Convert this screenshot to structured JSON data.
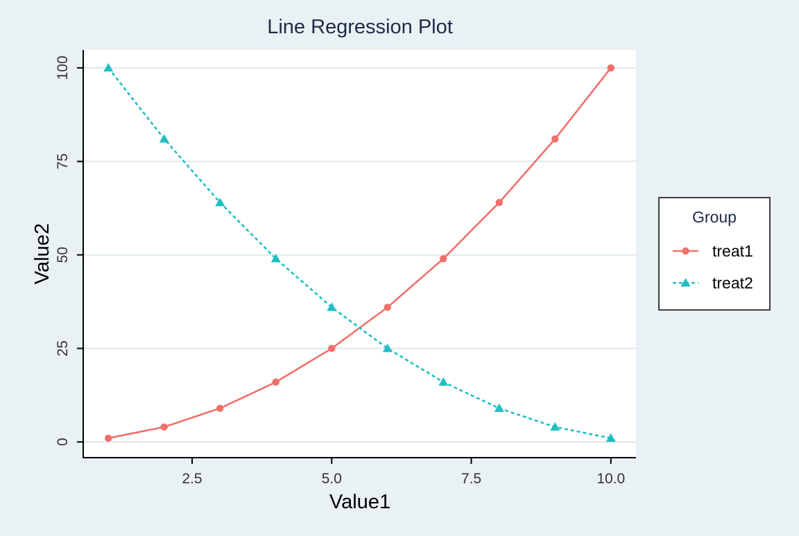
{
  "chart_data": {
    "type": "line",
    "title": "Line Regression Plot",
    "xlabel": "Value1",
    "ylabel": "Value2",
    "xlim": [
      0.55,
      10.45
    ],
    "ylim": [
      -4.2,
      104.8
    ],
    "xticks": [
      2.5,
      5.0,
      7.5,
      10.0
    ],
    "xtick_labels": [
      "2.5",
      "5.0",
      "7.5",
      "10.0"
    ],
    "yticks": [
      0,
      25,
      50,
      75,
      100
    ],
    "ytick_labels": [
      "0",
      "25",
      "50",
      "75",
      "100"
    ],
    "grid": "horizontal",
    "legend_position": "right",
    "legend_title": "Group",
    "x": [
      1,
      2,
      3,
      4,
      5,
      6,
      7,
      8,
      9,
      10
    ],
    "series": [
      {
        "name": "treat1",
        "values": [
          1,
          4,
          9,
          16,
          25,
          36,
          49,
          64,
          81,
          100
        ],
        "color": "#f0706a",
        "marker": "circle",
        "line": "solid"
      },
      {
        "name": "treat2",
        "values": [
          100,
          81,
          64,
          49,
          36,
          25,
          16,
          9,
          4,
          1
        ],
        "color": "#1fbec3",
        "marker": "triangle",
        "line": "dashed"
      }
    ]
  }
}
